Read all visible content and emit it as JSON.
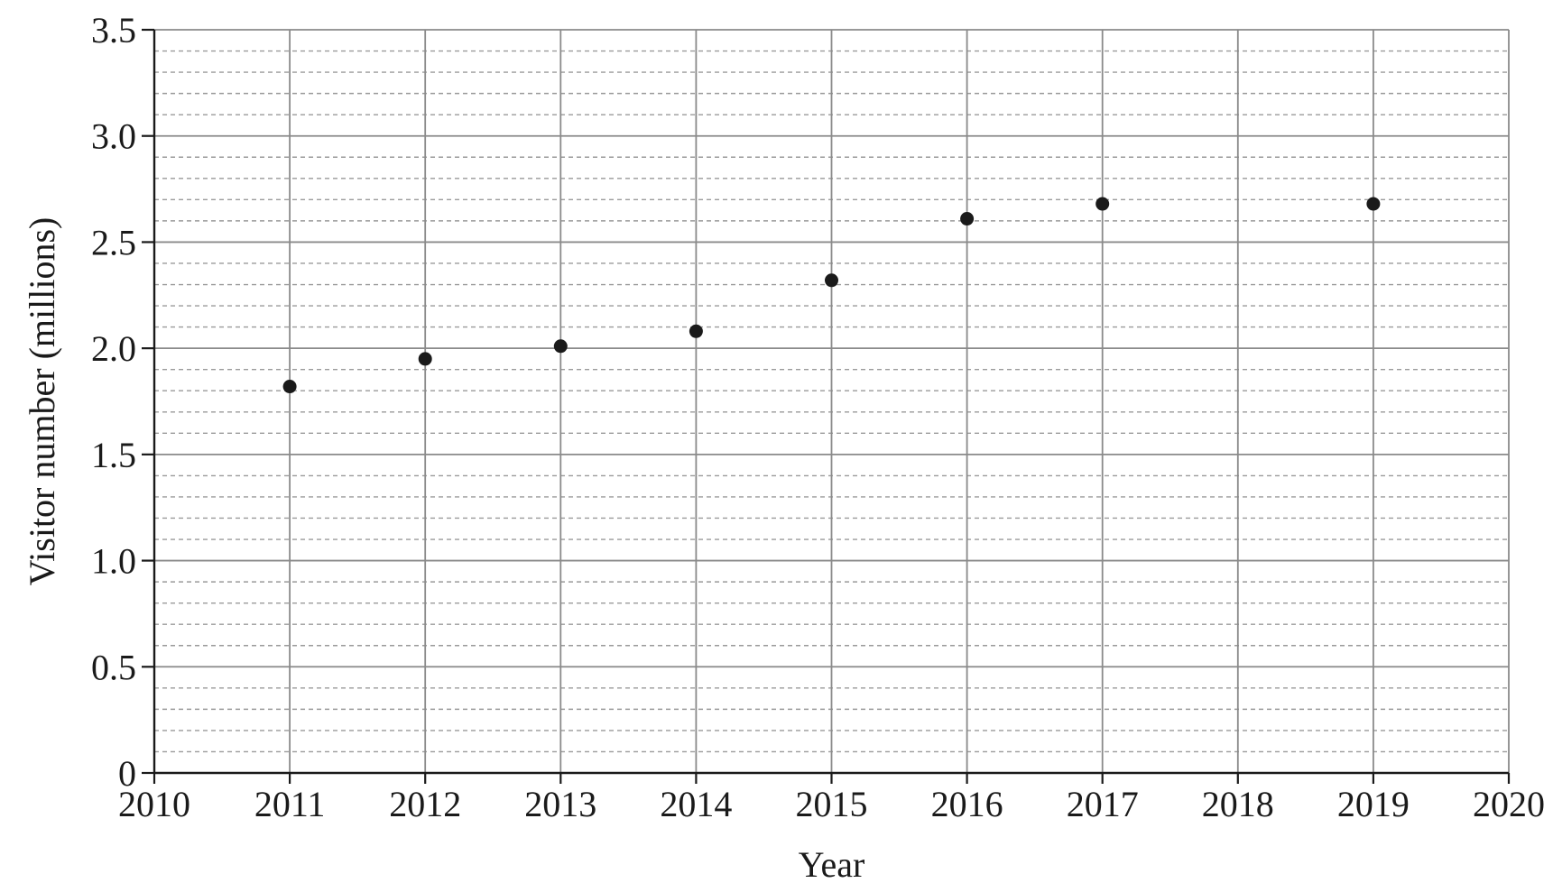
{
  "chart_data": {
    "type": "scatter",
    "title": "",
    "xlabel": "Year",
    "ylabel": "Visitor number (millions)",
    "xlim": [
      2010,
      2020
    ],
    "ylim": [
      0,
      3.5
    ],
    "x_ticks": [
      2010,
      2011,
      2012,
      2013,
      2014,
      2015,
      2016,
      2017,
      2018,
      2019,
      2020
    ],
    "x_tick_labels": [
      "2010",
      "2011",
      "2012",
      "2013",
      "2014",
      "2015",
      "2016",
      "2017",
      "2018",
      "2019",
      "2020"
    ],
    "y_ticks": [
      0,
      0.5,
      1.0,
      1.5,
      2.0,
      2.5,
      3.0,
      3.5
    ],
    "y_tick_labels": [
      "0",
      "0.5",
      "1.0",
      "1.5",
      "2.0",
      "2.5",
      "3.0",
      "3.5"
    ],
    "y_minor_step": 0.1,
    "grid": true,
    "legend": "none",
    "point_color": "#1a1a1a",
    "grid_major_color": "#8a8a8a",
    "grid_minor_color": "#9a9a9a",
    "axis_color": "#1a1a1a",
    "points": [
      {
        "x": 2011,
        "y": 1.82
      },
      {
        "x": 2012,
        "y": 1.95
      },
      {
        "x": 2013,
        "y": 2.01
      },
      {
        "x": 2014,
        "y": 2.08
      },
      {
        "x": 2015,
        "y": 2.32
      },
      {
        "x": 2016,
        "y": 2.61
      },
      {
        "x": 2017,
        "y": 2.68
      },
      {
        "x": 2019,
        "y": 2.68
      }
    ]
  }
}
